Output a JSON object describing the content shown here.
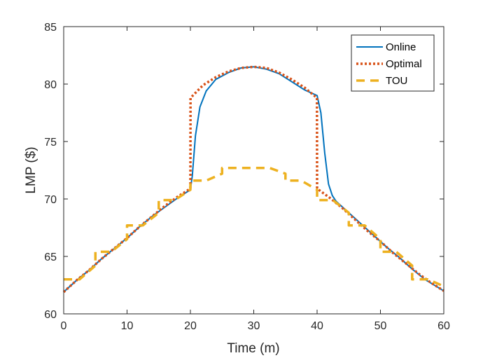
{
  "chart_data": {
    "type": "line",
    "title": "",
    "xlabel": "Time (m)",
    "ylabel": "LMP ($)",
    "xlim": [
      0,
      60
    ],
    "ylim": [
      60,
      85
    ],
    "xticks": [
      0,
      10,
      20,
      30,
      40,
      50,
      60
    ],
    "yticks": [
      60,
      65,
      70,
      75,
      80,
      85
    ],
    "grid": false,
    "legend_position": "top-right",
    "series": [
      {
        "name": "Online",
        "color": "#0072BD",
        "style": "solid",
        "x": [
          0,
          2,
          4,
          6,
          8,
          10,
          12,
          14,
          16,
          18,
          20,
          20.3,
          20.8,
          21.5,
          22.5,
          24,
          26,
          28,
          30,
          32,
          34,
          36,
          38,
          40,
          40.6,
          41.2,
          41.8,
          42.4,
          43,
          45,
          47,
          49,
          51,
          53,
          55,
          57,
          60
        ],
        "y": [
          61.9,
          62.9,
          63.8,
          64.8,
          65.7,
          66.6,
          67.6,
          68.5,
          69.3,
          70.1,
          70.8,
          72.0,
          75.5,
          78.0,
          79.4,
          80.4,
          81.0,
          81.4,
          81.5,
          81.3,
          80.9,
          80.2,
          79.5,
          79.0,
          77.5,
          74.0,
          71.3,
          70.3,
          69.8,
          68.8,
          67.8,
          66.8,
          65.8,
          64.9,
          63.9,
          63.0,
          62.0
        ]
      },
      {
        "name": "Optimal",
        "color": "#D95319",
        "style": "dotted",
        "x": [
          0,
          2,
          4,
          6,
          8,
          10,
          12,
          14,
          16,
          18,
          20,
          20.02,
          22,
          24,
          26,
          28,
          30,
          32,
          34,
          36,
          38,
          39.98,
          40,
          42,
          44,
          46,
          48,
          50,
          52,
          54,
          56,
          58,
          60
        ],
        "y": [
          61.9,
          62.9,
          63.8,
          64.8,
          65.7,
          66.6,
          67.6,
          68.5,
          69.4,
          70.2,
          70.9,
          78.8,
          79.9,
          80.6,
          81.1,
          81.4,
          81.5,
          81.4,
          81.0,
          80.4,
          79.7,
          78.8,
          70.9,
          70.1,
          69.2,
          68.2,
          67.2,
          66.3,
          65.3,
          64.4,
          63.5,
          62.7,
          62.0
        ]
      },
      {
        "name": "TOU",
        "color": "#EDB120",
        "style": "dashed",
        "x": [
          0,
          2.5,
          2.5,
          5,
          5,
          7.5,
          7.5,
          10,
          10,
          12.5,
          12.5,
          15,
          15,
          17.5,
          17.5,
          20,
          20,
          22.5,
          22.5,
          25,
          25,
          27.5,
          27.5,
          30,
          30,
          32.5,
          32.5,
          35,
          35,
          37.5,
          37.5,
          40,
          40,
          42.5,
          42.5,
          45,
          45,
          47.5,
          47.5,
          50,
          50,
          52.5,
          52.5,
          55,
          55,
          57.5,
          57.5,
          60
        ],
        "y": [
          63.0,
          63.0,
          63.0,
          64.2,
          65.4,
          65.4,
          65.4,
          66.5,
          67.7,
          67.7,
          67.7,
          68.8,
          69.9,
          69.9,
          69.9,
          70.8,
          71.6,
          71.6,
          71.6,
          72.2,
          72.7,
          72.7,
          72.7,
          72.7,
          72.7,
          72.7,
          72.7,
          72.2,
          71.6,
          71.6,
          71.6,
          70.8,
          69.9,
          69.9,
          69.9,
          68.8,
          67.7,
          67.7,
          67.7,
          66.5,
          65.4,
          65.4,
          65.4,
          64.2,
          63.0,
          63.0,
          63.0,
          62.4
        ]
      }
    ]
  }
}
